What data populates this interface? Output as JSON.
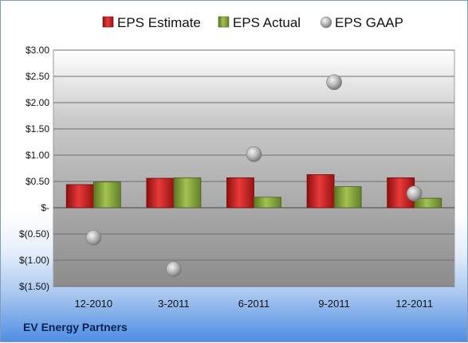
{
  "footer": {
    "company": "EV Energy Partners"
  },
  "legend": [
    {
      "label": "EPS Estimate",
      "color": "#d42020"
    },
    {
      "label": "EPS Actual",
      "color": "#8aa83a"
    },
    {
      "label": "EPS GAAP",
      "color": "#b9b9b9"
    }
  ],
  "chart_data": {
    "type": "bar",
    "categories": [
      "12-2010",
      "3-2011",
      "6-2011",
      "9-2011",
      "12-2011"
    ],
    "series": [
      {
        "name": "EPS Estimate",
        "type": "bar",
        "values": [
          0.44,
          0.56,
          0.57,
          0.63,
          0.57
        ]
      },
      {
        "name": "EPS Actual",
        "type": "bar",
        "values": [
          0.49,
          0.57,
          0.2,
          0.4,
          0.18
        ]
      },
      {
        "name": "EPS GAAP",
        "type": "scatter",
        "values": [
          -0.57,
          -1.17,
          1.02,
          2.39,
          0.27
        ]
      }
    ],
    "yticks": [
      3.0,
      2.5,
      2.0,
      1.5,
      1.0,
      0.5,
      0,
      -0.5,
      -1.0,
      -1.5
    ],
    "ytick_labels": [
      "$3.00",
      "$2.50",
      "$2.00",
      "$1.50",
      "$1.00",
      "$0.50",
      "$-",
      "$(0.50)",
      "$(1.00)",
      "$(1.50)"
    ],
    "ylim": [
      -1.5,
      3.0
    ],
    "grid": true,
    "legend_position": "top"
  }
}
